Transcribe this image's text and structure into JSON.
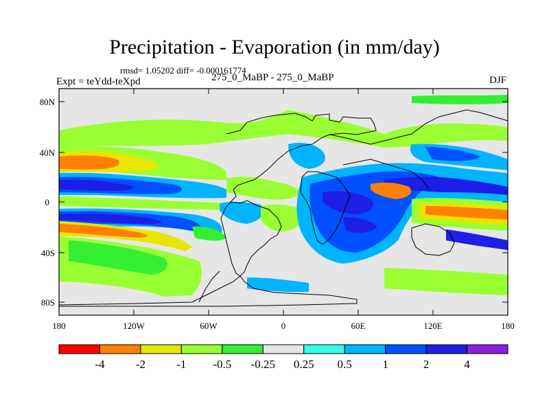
{
  "title": "Precipitation - Evaporation (in mm/day)",
  "stats_line": "rmsd= 1.05202 diff= -0.000161774",
  "expt_label": "Expt = teYdd-teXpd",
  "case_label": "275_0_MaBP - 275_0_MaBP",
  "season_label": "DJF",
  "lat_ticks": [
    "80N",
    "40N",
    "0",
    "40S",
    "80S"
  ],
  "lon_ticks": [
    "180",
    "120W",
    "60W",
    "0",
    "60E",
    "120E",
    "180"
  ],
  "colorbar": {
    "colors": [
      "#ff0000",
      "#ff8000",
      "#e6e600",
      "#99ff33",
      "#33ee33",
      "#e6e6e6",
      "#33ffe6",
      "#00b4ff",
      "#0050ff",
      "#1e1ee6",
      "#8c1edc"
    ],
    "labels": [
      "-4",
      "-2",
      "-1",
      "-0.5",
      "-0.25",
      "0.25",
      "0.5",
      "1",
      "2",
      "4"
    ]
  }
}
